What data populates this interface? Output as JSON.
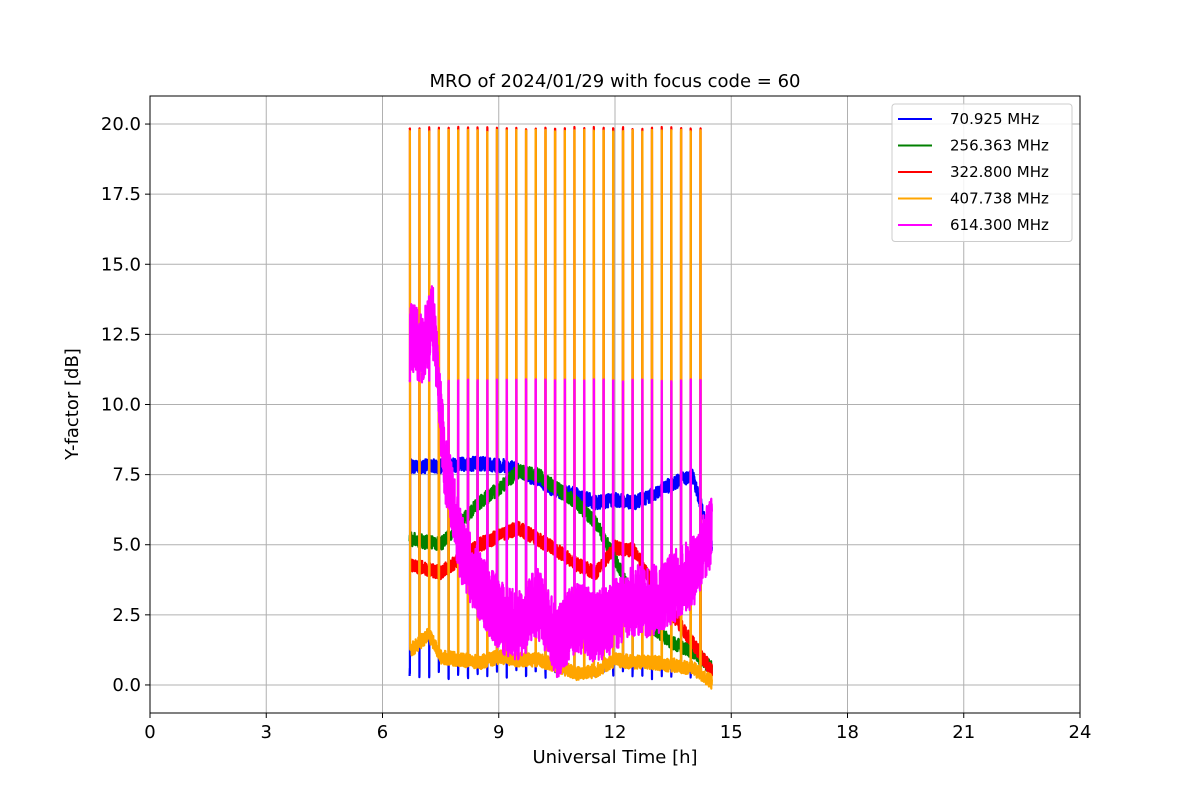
{
  "chart_data": {
    "type": "line",
    "title": "MRO of 2024/01/29 with focus code = 60",
    "xlabel": "Universal Time [h]",
    "ylabel": "Y-factor [dB]",
    "xlim": [
      0,
      24
    ],
    "ylim": [
      -1,
      21
    ],
    "xticks": [
      0,
      3,
      6,
      9,
      12,
      15,
      18,
      21,
      24
    ],
    "yticks": [
      0.0,
      2.5,
      5.0,
      7.5,
      10.0,
      12.5,
      15.0,
      17.5,
      20.0
    ],
    "grid": true,
    "legend_position": "top-right",
    "time_range": [
      6.7,
      14.5
    ],
    "spike_interval_h": 0.25,
    "series": [
      {
        "name": " 70.925 MHz",
        "color": "#0000ff",
        "baseline_x": [
          6.7,
          7.5,
          8.5,
          9.3,
          10.0,
          10.5,
          11.0,
          11.5,
          12.0,
          12.5,
          13.0,
          13.5,
          14.0,
          14.5
        ],
        "baseline_y": [
          7.8,
          7.8,
          7.9,
          7.8,
          7.3,
          6.9,
          6.8,
          6.5,
          6.6,
          6.5,
          6.8,
          7.2,
          7.5,
          5.0
        ],
        "dip_y": 0.2
      },
      {
        "name": "256.363 MHz",
        "color": "#008000",
        "baseline_x": [
          6.7,
          7.5,
          8.5,
          9.0,
          9.5,
          10.0,
          10.5,
          11.0,
          11.5,
          12.0,
          12.5,
          13.0,
          13.5,
          14.0,
          14.5
        ],
        "baseline_y": [
          5.2,
          5.0,
          6.5,
          7.0,
          7.6,
          7.5,
          7.0,
          6.5,
          5.8,
          4.5,
          3.0,
          2.0,
          1.5,
          1.2,
          0.6
        ],
        "spike_y": null
      },
      {
        "name": "322.800 MHz",
        "color": "#ff0000",
        "baseline_x": [
          6.7,
          7.0,
          7.5,
          8.0,
          8.5,
          9.0,
          9.5,
          10.0,
          10.5,
          11.0,
          11.5,
          12.0,
          12.5,
          13.0,
          13.5,
          14.0,
          14.5
        ],
        "baseline_y": [
          4.3,
          4.2,
          4.0,
          4.5,
          5.0,
          5.3,
          5.6,
          5.2,
          4.8,
          4.3,
          4.0,
          4.9,
          4.8,
          3.5,
          2.5,
          1.5,
          0.5
        ],
        "spike_y": 19.9
      },
      {
        "name": "407.738 MHz",
        "color": "#ffa500",
        "baseline_x": [
          6.7,
          7.2,
          7.5,
          8.0,
          8.5,
          9.0,
          9.5,
          10.0,
          10.5,
          11.0,
          11.5,
          12.0,
          12.5,
          13.0,
          13.5,
          14.0,
          14.5
        ],
        "baseline_y": [
          1.2,
          1.8,
          1.0,
          0.9,
          0.8,
          1.0,
          0.9,
          0.9,
          0.7,
          0.4,
          0.5,
          0.9,
          0.8,
          0.8,
          0.7,
          0.6,
          0.1
        ],
        "spike_y": 19.8
      },
      {
        "name": "614.300 MHz",
        "color": "#ff00ff",
        "baseline_x": [
          6.7,
          7.0,
          7.3,
          7.6,
          8.0,
          8.5,
          9.0,
          9.5,
          10.0,
          10.5,
          11.0,
          11.5,
          12.0,
          12.5,
          13.0,
          13.5,
          14.0,
          14.5
        ],
        "baseline_y": [
          12.5,
          12.0,
          13.0,
          8.0,
          5.0,
          3.5,
          2.5,
          2.0,
          3.0,
          1.5,
          2.5,
          2.0,
          2.5,
          3.0,
          3.0,
          3.5,
          4.0,
          5.5
        ],
        "spike_y": 10.9
      }
    ]
  }
}
